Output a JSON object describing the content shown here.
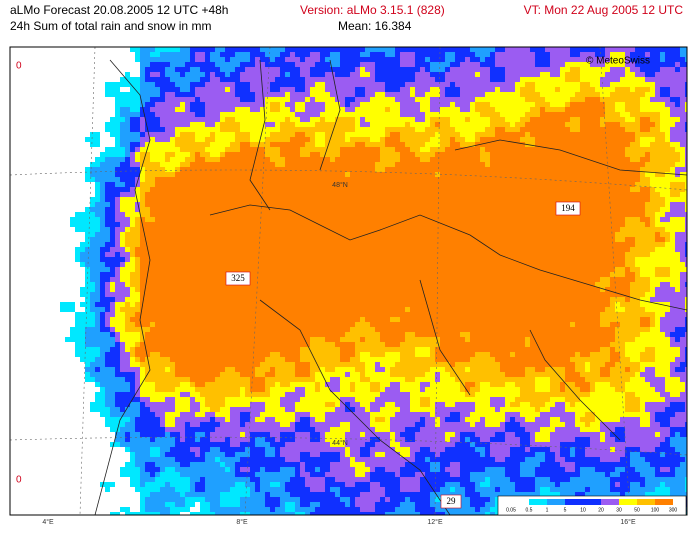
{
  "header": {
    "title": "aLMo Forecast 20.08.2005 12 UTC +48h",
    "subtitle": "24h Sum of total rain and snow in mm",
    "version": "Version: aLMo 3.15.1   (828)",
    "mean": "Mean: 16.384",
    "valid_time": "VT: Mon 22 Aug 2005 12 UTC"
  },
  "map": {
    "copyright": "© MeteoSwiss",
    "lat_labels": [
      "48°N",
      "44°N"
    ],
    "corner_labels": [
      "0",
      "0"
    ],
    "max_labels": [
      "325",
      "194",
      "29"
    ],
    "lon_labels": [
      "4°E",
      "8°E",
      "12°E",
      "16°E"
    ]
  },
  "legend": {
    "labels": [
      "0.05",
      "0.5",
      "1",
      "5",
      "10",
      "20",
      "30",
      "50",
      "100",
      "300"
    ]
  }
}
